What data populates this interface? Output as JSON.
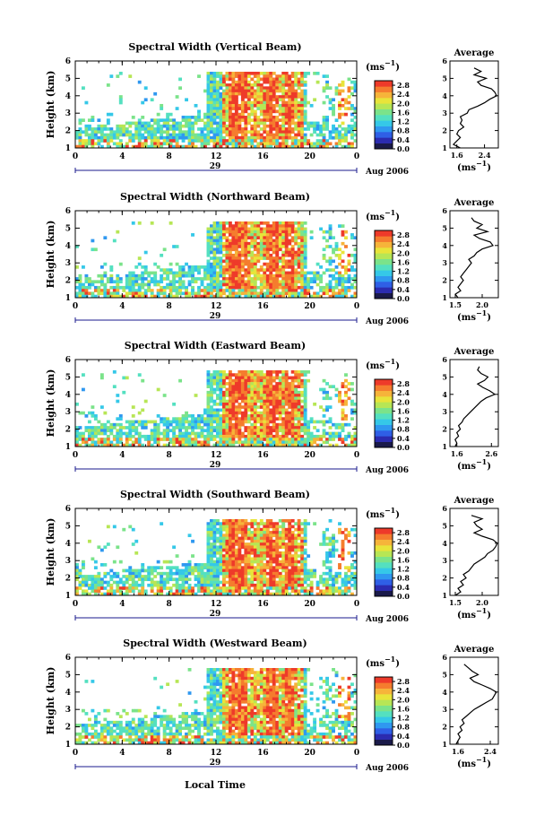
{
  "figure": {
    "bottom_xlabel": "Local Time"
  },
  "colors": {
    "colormap": [
      "#1a1a4a",
      "#2b2bb0",
      "#2f5fe6",
      "#2f98f0",
      "#35c8e8",
      "#54e0c0",
      "#7be38a",
      "#b7e655",
      "#e8e43a",
      "#f6b43a",
      "#f57c2e",
      "#ee3a2a"
    ],
    "axis": "#000000",
    "date_axis": "#1a1a8c",
    "average_line": "#000000"
  },
  "chart_data": [
    {
      "type": "heatmap",
      "title": "Spectral Width (Vertical Beam)",
      "ylabel": "Height (km)",
      "units_label": "(ms⁻¹)",
      "x_ticks": [
        "0",
        "4",
        "8",
        "12",
        "16",
        "20",
        "0"
      ],
      "xlim": [
        0,
        24
      ],
      "y_ticks": [
        "1",
        "2",
        "3",
        "4",
        "5",
        "6"
      ],
      "ylim": [
        1,
        6
      ],
      "date_day": "29",
      "date_label": "Aug 2006",
      "colorbar_ticks": [
        "0.0",
        "0.4",
        "0.8",
        "1.2",
        "1.6",
        "2.0",
        "2.4",
        "2.8"
      ],
      "colorbar_range": [
        0.0,
        3.0
      ],
      "average": {
        "title": "Average",
        "xlabel": "(ms⁻¹)",
        "x_ticks": [
          "1.6",
          "2.4"
        ],
        "xlim": [
          1.4,
          2.8
        ],
        "heights": [
          1.0,
          1.2,
          1.4,
          1.6,
          1.8,
          2.0,
          2.2,
          2.4,
          2.6,
          2.8,
          3.0,
          3.2,
          3.4,
          3.6,
          3.8,
          4.0,
          4.2,
          4.4,
          4.6,
          4.8,
          5.0,
          5.2,
          5.4,
          5.6
        ],
        "values": [
          1.7,
          1.5,
          1.6,
          1.7,
          1.6,
          1.65,
          1.8,
          1.7,
          1.75,
          1.7,
          1.9,
          1.95,
          2.2,
          2.4,
          2.55,
          2.75,
          2.7,
          2.6,
          2.3,
          2.2,
          2.45,
          2.1,
          2.3,
          2.1
        ]
      }
    },
    {
      "type": "heatmap",
      "title": "Spectral Width (Northward Beam)",
      "ylabel": "Height (km)",
      "units_label": "(ms⁻¹)",
      "x_ticks": [
        "0",
        "4",
        "8",
        "12",
        "16",
        "20",
        "0"
      ],
      "xlim": [
        0,
        24
      ],
      "y_ticks": [
        "1",
        "2",
        "3",
        "4",
        "5",
        "6"
      ],
      "ylim": [
        1,
        6
      ],
      "date_day": "29",
      "date_label": "Aug 2006",
      "colorbar_ticks": [
        "0.0",
        "0.4",
        "0.8",
        "1.2",
        "1.6",
        "2.0",
        "2.4",
        "2.8"
      ],
      "colorbar_range": [
        0.0,
        3.0
      ],
      "average": {
        "title": "Average",
        "xlabel": "(ms⁻¹)",
        "x_ticks": [
          "1.5",
          "2.0"
        ],
        "xlim": [
          1.4,
          2.3
        ],
        "heights": [
          1.0,
          1.2,
          1.4,
          1.6,
          1.8,
          2.0,
          2.2,
          2.4,
          2.6,
          2.8,
          3.0,
          3.2,
          3.4,
          3.6,
          3.8,
          4.0,
          4.2,
          4.4,
          4.6,
          4.8,
          5.0,
          5.2,
          5.4,
          5.6
        ],
        "values": [
          1.55,
          1.5,
          1.6,
          1.55,
          1.6,
          1.65,
          1.6,
          1.65,
          1.7,
          1.75,
          1.8,
          1.75,
          1.85,
          1.9,
          2.0,
          2.2,
          2.15,
          1.95,
          1.85,
          2.1,
          1.9,
          2.0,
          1.85,
          1.8
        ]
      }
    },
    {
      "type": "heatmap",
      "title": "Spectral Width (Eastward Beam)",
      "ylabel": "Height (km)",
      "units_label": "(ms⁻¹)",
      "x_ticks": [
        "0",
        "4",
        "8",
        "12",
        "16",
        "20",
        "0"
      ],
      "xlim": [
        0,
        24
      ],
      "y_ticks": [
        "1",
        "2",
        "3",
        "4",
        "5",
        "6"
      ],
      "ylim": [
        1,
        6
      ],
      "date_day": "29",
      "date_label": "Aug 2006",
      "colorbar_ticks": [
        "0.0",
        "0.4",
        "0.8",
        "1.2",
        "1.6",
        "2.0",
        "2.4",
        "2.8"
      ],
      "colorbar_range": [
        0.0,
        3.0
      ],
      "average": {
        "title": "Average",
        "xlabel": "(ms⁻¹)",
        "x_ticks": [
          "1.6",
          "2.6"
        ],
        "xlim": [
          1.4,
          2.8
        ],
        "heights": [
          1.0,
          1.2,
          1.4,
          1.6,
          1.8,
          2.0,
          2.2,
          2.4,
          2.6,
          2.8,
          3.0,
          3.2,
          3.4,
          3.6,
          3.8,
          4.0,
          4.2,
          4.4,
          4.6,
          4.8,
          5.0,
          5.2,
          5.4,
          5.6
        ],
        "values": [
          1.55,
          1.6,
          1.55,
          1.65,
          1.6,
          1.7,
          1.65,
          1.75,
          1.8,
          1.9,
          2.0,
          2.1,
          2.2,
          2.3,
          2.45,
          2.7,
          2.55,
          2.35,
          2.2,
          2.4,
          2.5,
          2.3,
          2.2,
          2.25
        ]
      }
    },
    {
      "type": "heatmap",
      "title": "Spectral Width (Southward Beam)",
      "ylabel": "Height (km)",
      "units_label": "(ms⁻¹)",
      "x_ticks": [
        "0",
        "4",
        "8",
        "12",
        "16",
        "20",
        "0"
      ],
      "xlim": [
        0,
        24
      ],
      "y_ticks": [
        "1",
        "2",
        "3",
        "4",
        "5",
        "6"
      ],
      "ylim": [
        1,
        6
      ],
      "date_day": "29",
      "date_label": "Aug 2006",
      "colorbar_ticks": [
        "0.0",
        "0.4",
        "0.8",
        "1.2",
        "1.6",
        "2.0",
        "2.4",
        "2.8"
      ],
      "colorbar_range": [
        0.0,
        3.0
      ],
      "average": {
        "title": "Average",
        "xlabel": "(ms⁻¹)",
        "x_ticks": [
          "1.5",
          "2.0"
        ],
        "xlim": [
          1.4,
          2.3
        ],
        "heights": [
          1.0,
          1.2,
          1.4,
          1.6,
          1.8,
          2.0,
          2.2,
          2.4,
          2.6,
          2.8,
          3.0,
          3.2,
          3.4,
          3.6,
          3.8,
          4.0,
          4.2,
          4.4,
          4.6,
          4.8,
          5.0,
          5.2,
          5.4,
          5.6
        ],
        "values": [
          1.5,
          1.6,
          1.55,
          1.65,
          1.6,
          1.7,
          1.65,
          1.75,
          1.8,
          1.85,
          1.95,
          2.05,
          2.1,
          2.2,
          2.25,
          2.28,
          2.2,
          2.0,
          1.85,
          2.0,
          1.9,
          1.85,
          2.0,
          1.8
        ]
      }
    },
    {
      "type": "heatmap",
      "title": "Spectral Width (Westward Beam)",
      "ylabel": "Height (km)",
      "units_label": "(ms⁻¹)",
      "x_ticks": [
        "0",
        "4",
        "8",
        "12",
        "16",
        "20",
        "0"
      ],
      "xlim": [
        0,
        24
      ],
      "y_ticks": [
        "1",
        "2",
        "3",
        "4",
        "5",
        "6"
      ],
      "ylim": [
        1,
        6
      ],
      "date_day": "29",
      "date_label": "Aug 2006",
      "colorbar_ticks": [
        "0.0",
        "0.4",
        "0.8",
        "1.2",
        "1.6",
        "2.0",
        "2.4",
        "2.8"
      ],
      "colorbar_range": [
        0.0,
        3.0
      ],
      "average": {
        "title": "Average",
        "xlabel": "(ms⁻¹)",
        "x_ticks": [
          "1.6",
          "2.4"
        ],
        "xlim": [
          1.4,
          2.6
        ],
        "heights": [
          1.0,
          1.2,
          1.4,
          1.6,
          1.8,
          2.0,
          2.2,
          2.4,
          2.6,
          2.8,
          3.0,
          3.2,
          3.4,
          3.6,
          3.8,
          4.0,
          4.2,
          4.4,
          4.6,
          4.8,
          5.0,
          5.2,
          5.4,
          5.6
        ],
        "values": [
          1.55,
          1.6,
          1.65,
          1.6,
          1.7,
          1.65,
          1.75,
          1.7,
          1.8,
          1.9,
          2.0,
          2.15,
          2.3,
          2.45,
          2.5,
          2.55,
          2.4,
          2.2,
          2.0,
          1.9,
          2.1,
          1.95,
          1.85,
          1.75
        ]
      }
    }
  ]
}
